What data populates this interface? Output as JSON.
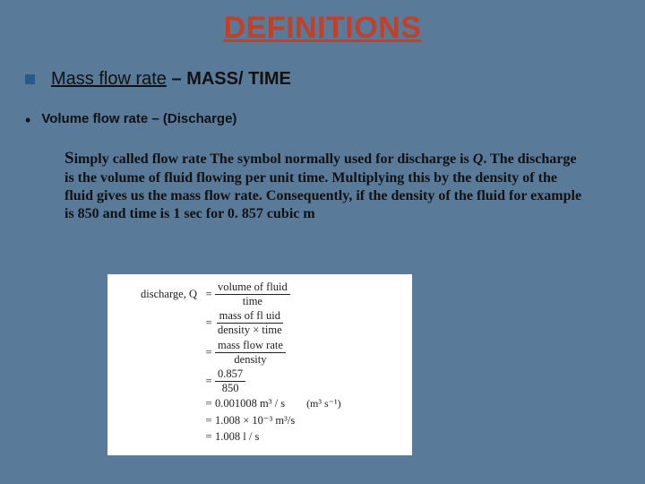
{
  "title": "DEFINITIONS",
  "item1": {
    "lead": "Mass flow rate",
    "dash": " – ",
    "tail": " MASS/ TIME"
  },
  "item2": "Volume flow rate – (Discharge)",
  "body": {
    "firstChar": "S",
    "rest": "imply called flow rate The symbol normally used for discharge is ",
    "qvar": "Q",
    "afterQ": ". The discharge is the volume of fluid flowing per unit time. Multiplying this by the density of the fluid gives us the mass flow rate. Consequently, if the density of the fluid for example is 850 and time is 1 sec for 0. 857 cubic m"
  },
  "formula": {
    "label": "discharge, Q",
    "r1num": "volume of fluid",
    "r1den": "time",
    "r2num": "mass of fl uid",
    "r2den": "density × time",
    "r3num": "mass flow rate",
    "r3den": "density",
    "r4num": "0.857",
    "r4den": "850",
    "r5": "0.001008 m³ / s",
    "r5note": "(m³ s⁻¹)",
    "r6": "1.008 × 10⁻³ m³/s",
    "r7": "1.008 l / s"
  },
  "colors": {
    "background": "#5a7a9a",
    "title": "#c04028",
    "bullet": "#2a5a8a",
    "formula_bg": "#ffffff",
    "text": "#111111"
  }
}
